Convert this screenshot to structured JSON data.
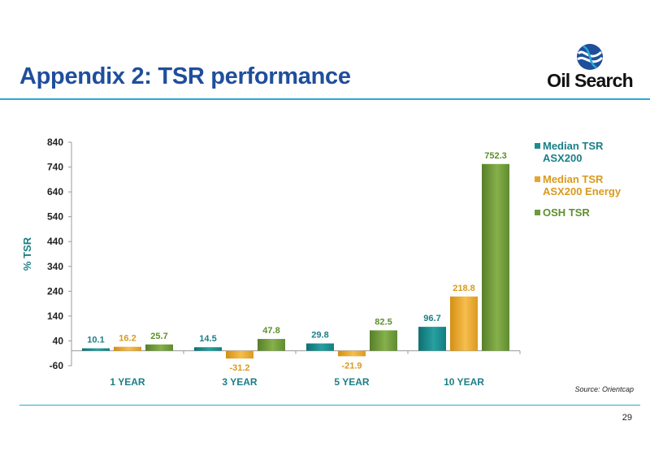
{
  "slide": {
    "title": "Appendix 2: TSR performance",
    "page_number": "29",
    "source": "Source: Orientcap"
  },
  "logo": {
    "text": "Oil Search",
    "icon": "oil-search-globe-icon"
  },
  "colors": {
    "title": "#1f4e9c",
    "rule": "#29a9d6",
    "median_asx200": "#1a8f8f",
    "median_energy": "#e8a42a",
    "osh": "#6d9b3a",
    "median_asx200_label": "#1a7f86",
    "median_energy_label": "#d99a1e",
    "osh_label": "#5e8f2e"
  },
  "chart_data": {
    "type": "bar",
    "categories": [
      "1 YEAR",
      "3 YEAR",
      "5 YEAR",
      "10 YEAR"
    ],
    "series": [
      {
        "name": "Median TSR ASX200",
        "legend": [
          "Median TSR",
          "ASX200"
        ],
        "values": [
          10.1,
          14.5,
          29.8,
          96.7
        ]
      },
      {
        "name": "Median TSR ASX200 Energy",
        "legend": [
          "Median TSR",
          "ASX200 Energy"
        ],
        "values": [
          16.2,
          -31.2,
          -21.9,
          218.8
        ]
      },
      {
        "name": "OSH TSR",
        "legend": [
          "OSH TSR"
        ],
        "values": [
          25.7,
          47.8,
          82.5,
          752.3
        ]
      }
    ],
    "ylabel": "% TSR",
    "xlabel": "",
    "ylim": [
      -60,
      840
    ],
    "yticks": [
      -60,
      40,
      140,
      240,
      340,
      440,
      540,
      640,
      740,
      840
    ],
    "grid": false,
    "legend_position": "right"
  }
}
